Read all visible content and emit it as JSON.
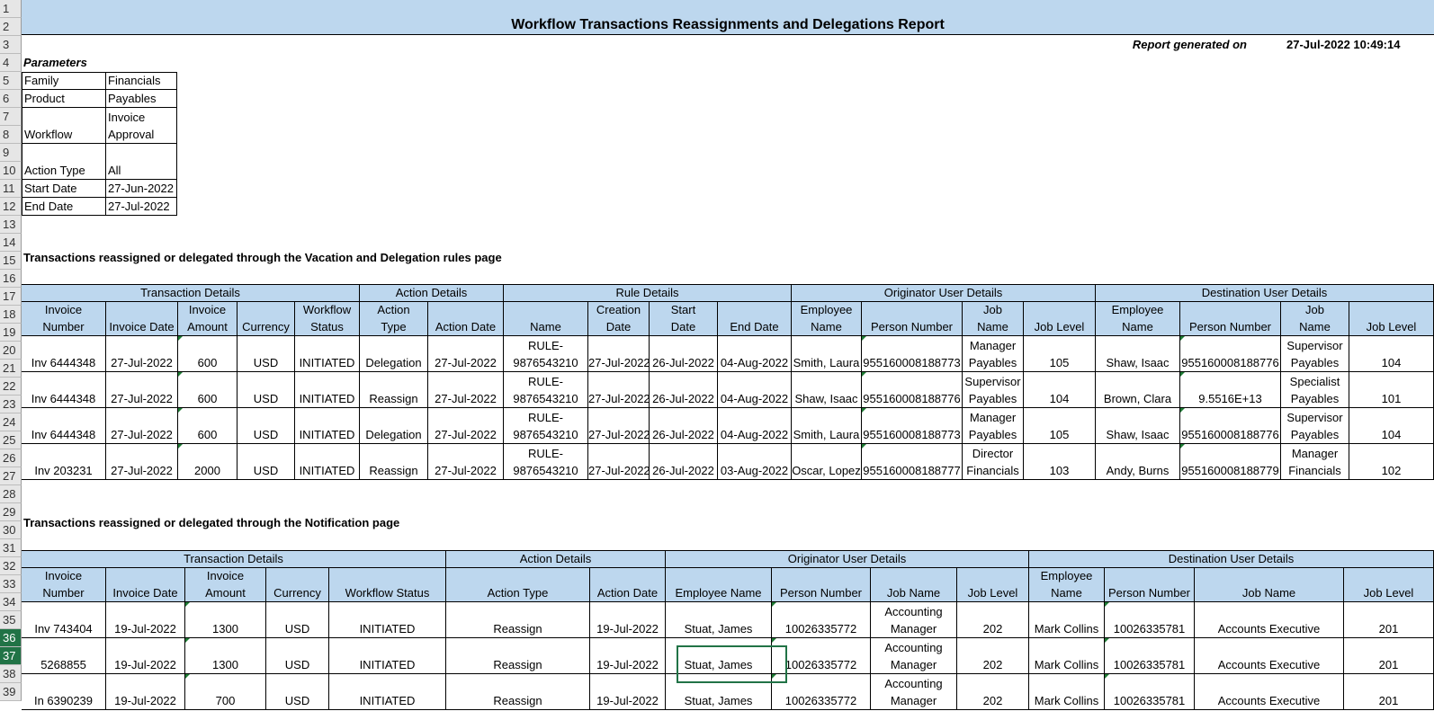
{
  "row_numbers": [
    "1",
    "2",
    "3",
    "4",
    "5",
    "6",
    "7",
    "8",
    "9",
    "10",
    "11",
    "12",
    "13",
    "14",
    "15",
    "16",
    "17",
    "18",
    "19",
    "20",
    "21",
    "22",
    "23",
    "24",
    "25",
    "26",
    "27",
    "28",
    "29",
    "30",
    "31",
    "32",
    "33",
    "34",
    "35",
    "36",
    "37",
    "38",
    "39"
  ],
  "report": {
    "title": "Workflow Transactions Reassignments and Delegations Report",
    "generated_label": "Report generated on",
    "generated_value": "27-Jul-2022 10:49:14"
  },
  "parameters": {
    "heading": "Parameters",
    "rows": [
      {
        "label": "Family",
        "value": "Financials"
      },
      {
        "label": "Product",
        "value": "Payables"
      },
      {
        "label": "Workflow",
        "value": "Invoice Approval",
        "value_line1": "Invoice",
        "value_line2": "Approval"
      },
      {
        "label": "Action Type",
        "value": "All"
      },
      {
        "label": "Start Date",
        "value": "27-Jun-2022"
      },
      {
        "label": "End Date",
        "value": "27-Jul-2022"
      }
    ]
  },
  "section1": {
    "heading": "Transactions reassigned or delegated through the Vacation and Delegation rules page",
    "groups": [
      "Transaction Details",
      "Action Details",
      "Rule Details",
      "Originator User Details",
      "Destination User Details"
    ],
    "columns": [
      "Invoice Number",
      "Invoice Date",
      "Invoice Amount",
      "Currency",
      "Workflow Status",
      "Action Type",
      "Action Date",
      "Name",
      "Creation Date",
      "Start Date",
      "End Date",
      "Employee Name",
      "Person Number",
      "Job Name",
      "Job Level",
      "Employee Name",
      "Person Number",
      "Job Name",
      "Job Level"
    ],
    "rows": [
      [
        "Inv 6444348",
        "27-Jul-2022",
        "600",
        "USD",
        "INITIATED",
        "Delegation",
        "27-Jul-2022",
        "RULE-\n9876543210",
        "27-Jul-2022",
        "26-Jul-2022",
        "04-Aug-2022",
        "Smith, Laura",
        "955160008188773",
        "Manager\nPayables",
        "105",
        "Shaw, Isaac",
        "955160008188776",
        "Supervisor\nPayables",
        "104"
      ],
      [
        "Inv 6444348",
        "27-Jul-2022",
        "600",
        "USD",
        "INITIATED",
        "Reassign",
        "27-Jul-2022",
        "RULE-\n9876543210",
        "27-Jul-2022",
        "26-Jul-2022",
        "04-Aug-2022",
        "Shaw, Isaac",
        "955160008188776",
        "Supervisor\nPayables",
        "104",
        "Brown, Clara",
        "9.5516E+13",
        "Specialist\nPayables",
        "101"
      ],
      [
        "Inv 6444348",
        "27-Jul-2022",
        "600",
        "USD",
        "INITIATED",
        "Delegation",
        "27-Jul-2022",
        "RULE-\n9876543210",
        "27-Jul-2022",
        "26-Jul-2022",
        "04-Aug-2022",
        "Smith, Laura",
        "955160008188773",
        "Manager\nPayables",
        "105",
        "Shaw, Isaac",
        "955160008188776",
        "Supervisor\nPayables",
        "104"
      ],
      [
        "Inv 203231",
        "27-Jul-2022",
        "2000",
        "USD",
        "INITIATED",
        "Reassign",
        "27-Jul-2022",
        "RULE-\n9876543210",
        "27-Jul-2022",
        "26-Jul-2022",
        "03-Aug-2022",
        "Oscar, Lopez",
        "955160008188777",
        "Director\nFinancials",
        "103",
        "Andy, Burns",
        "955160008188779",
        "Manager\nFinancials",
        "102"
      ]
    ]
  },
  "section2": {
    "heading": "Transactions reassigned or delegated through the Notification page",
    "groups": [
      "Transaction Details",
      "Action Details",
      "Originator User Details",
      "Destination User Details"
    ],
    "columns": [
      "Invoice Number",
      "Invoice Date",
      "Invoice Amount",
      "Currency",
      "Workflow Status",
      "Action Type",
      "Action Date",
      "Employee Name",
      "Person Number",
      "Job Name",
      "Job Level",
      "Employee Name",
      "Person Number",
      "Job Name",
      "Job Level"
    ],
    "rows": [
      [
        "Inv 743404",
        "19-Jul-2022",
        "1300",
        "USD",
        "INITIATED",
        "Reassign",
        "19-Jul-2022",
        "Stuat, James",
        "10026335772",
        "Accounting\nManager",
        "202",
        "Mark Collins",
        "10026335781",
        "Accounts Executive",
        "201"
      ],
      [
        "5268855",
        "19-Jul-2022",
        "1300",
        "USD",
        "INITIATED",
        "Reassign",
        "19-Jul-2022",
        "Stuat, James",
        "10026335772",
        "Accounting\nManager",
        "202",
        "Mark Collins",
        "10026335781",
        "Accounts Executive",
        "201"
      ],
      [
        "In 6390239",
        "19-Jul-2022",
        "700",
        "USD",
        "INITIATED",
        "Reassign",
        "19-Jul-2022",
        "Stuat, James",
        "10026335772",
        "Accounting\nManager",
        "202",
        "Mark Collins",
        "10026335781",
        "Accounts Executive",
        "201"
      ]
    ]
  }
}
